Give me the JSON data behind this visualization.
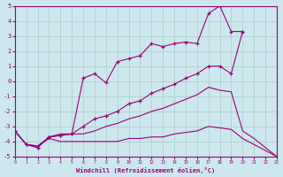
{
  "xlabel": "Windchill (Refroidissement éolien,°C)",
  "bg_color": "#cce8ee",
  "grid_color": "#aacccc",
  "line_color": "#990077",
  "xlim": [
    0,
    23
  ],
  "ylim": [
    -5,
    5
  ],
  "xticks": [
    0,
    1,
    2,
    3,
    4,
    5,
    6,
    7,
    8,
    9,
    10,
    11,
    12,
    13,
    14,
    15,
    16,
    17,
    18,
    19,
    20,
    21,
    22,
    23
  ],
  "yticks": [
    -5,
    -4,
    -3,
    -2,
    -1,
    0,
    1,
    2,
    3,
    4,
    5
  ],
  "line1_x": [
    0,
    1,
    2,
    3,
    4,
    5,
    6,
    7,
    8,
    9,
    10,
    11,
    12,
    13,
    14,
    15,
    16,
    17,
    18,
    19,
    20
  ],
  "line1_y": [
    -3.3,
    -4.2,
    -4.4,
    -3.7,
    -3.6,
    -3.5,
    0.2,
    0.5,
    -0.1,
    1.3,
    1.5,
    1.7,
    2.5,
    2.3,
    2.5,
    2.6,
    2.5,
    4.5,
    5.0,
    3.3,
    3.3
  ],
  "line2_x": [
    0,
    1,
    2,
    3,
    4,
    5,
    6,
    7,
    8,
    9,
    10,
    11,
    12,
    13,
    14,
    15,
    16,
    17,
    18,
    19,
    20
  ],
  "line2_y": [
    -3.3,
    -4.2,
    -4.4,
    -3.7,
    -3.6,
    -3.5,
    -3.0,
    -2.5,
    -2.3,
    -2.0,
    -1.5,
    -1.3,
    -0.8,
    -0.5,
    -0.2,
    0.2,
    0.5,
    1.0,
    1.0,
    0.5,
    3.3
  ],
  "line3_x": [
    0,
    1,
    2,
    3,
    4,
    5,
    6,
    7,
    8,
    9,
    10,
    11,
    12,
    13,
    14,
    15,
    16,
    17,
    18,
    19,
    20,
    21,
    22,
    23
  ],
  "line3_y": [
    -3.3,
    -4.2,
    -4.3,
    -3.7,
    -3.5,
    -3.5,
    -3.5,
    -3.3,
    -3.0,
    -2.8,
    -2.5,
    -2.3,
    -2.0,
    -1.8,
    -1.5,
    -1.2,
    -0.9,
    -0.4,
    -0.6,
    -0.7,
    -3.3,
    -3.8,
    -4.4,
    -5.0
  ],
  "line4_x": [
    0,
    1,
    2,
    3,
    4,
    5,
    6,
    7,
    8,
    9,
    10,
    11,
    12,
    13,
    14,
    15,
    16,
    17,
    18,
    19,
    20,
    21,
    22,
    23
  ],
  "line4_y": [
    -3.3,
    -4.2,
    -4.3,
    -3.8,
    -4.0,
    -4.0,
    -4.0,
    -4.0,
    -4.0,
    -4.0,
    -3.8,
    -3.8,
    -3.7,
    -3.7,
    -3.5,
    -3.4,
    -3.3,
    -3.0,
    -3.1,
    -3.2,
    -3.8,
    -4.2,
    -4.6,
    -5.0
  ]
}
